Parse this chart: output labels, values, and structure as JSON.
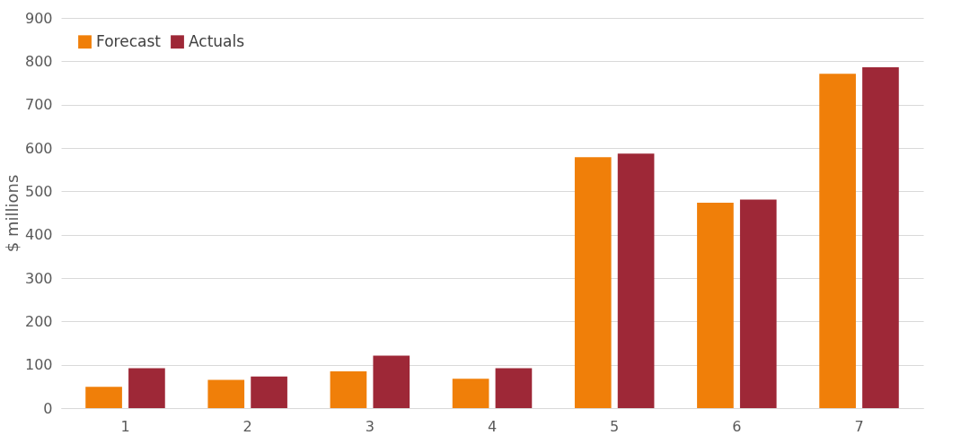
{
  "chart_data": {
    "type": "bar",
    "ylabel": "$ millions",
    "categories": [
      "1",
      "2",
      "3",
      "4",
      "5",
      "6",
      "7"
    ],
    "series": [
      {
        "name": "Forecast",
        "color": "#f07f09",
        "values": [
          49,
          65,
          85,
          68,
          579,
          474,
          771
        ]
      },
      {
        "name": "Actuals",
        "color": "#9e2837",
        "values": [
          92,
          73,
          121,
          92,
          587,
          481,
          786
        ]
      }
    ],
    "ylim": [
      0,
      900
    ],
    "yticks": [
      0,
      100,
      200,
      300,
      400,
      500,
      600,
      700,
      800,
      900
    ],
    "grid": "y",
    "legend": "top left"
  }
}
